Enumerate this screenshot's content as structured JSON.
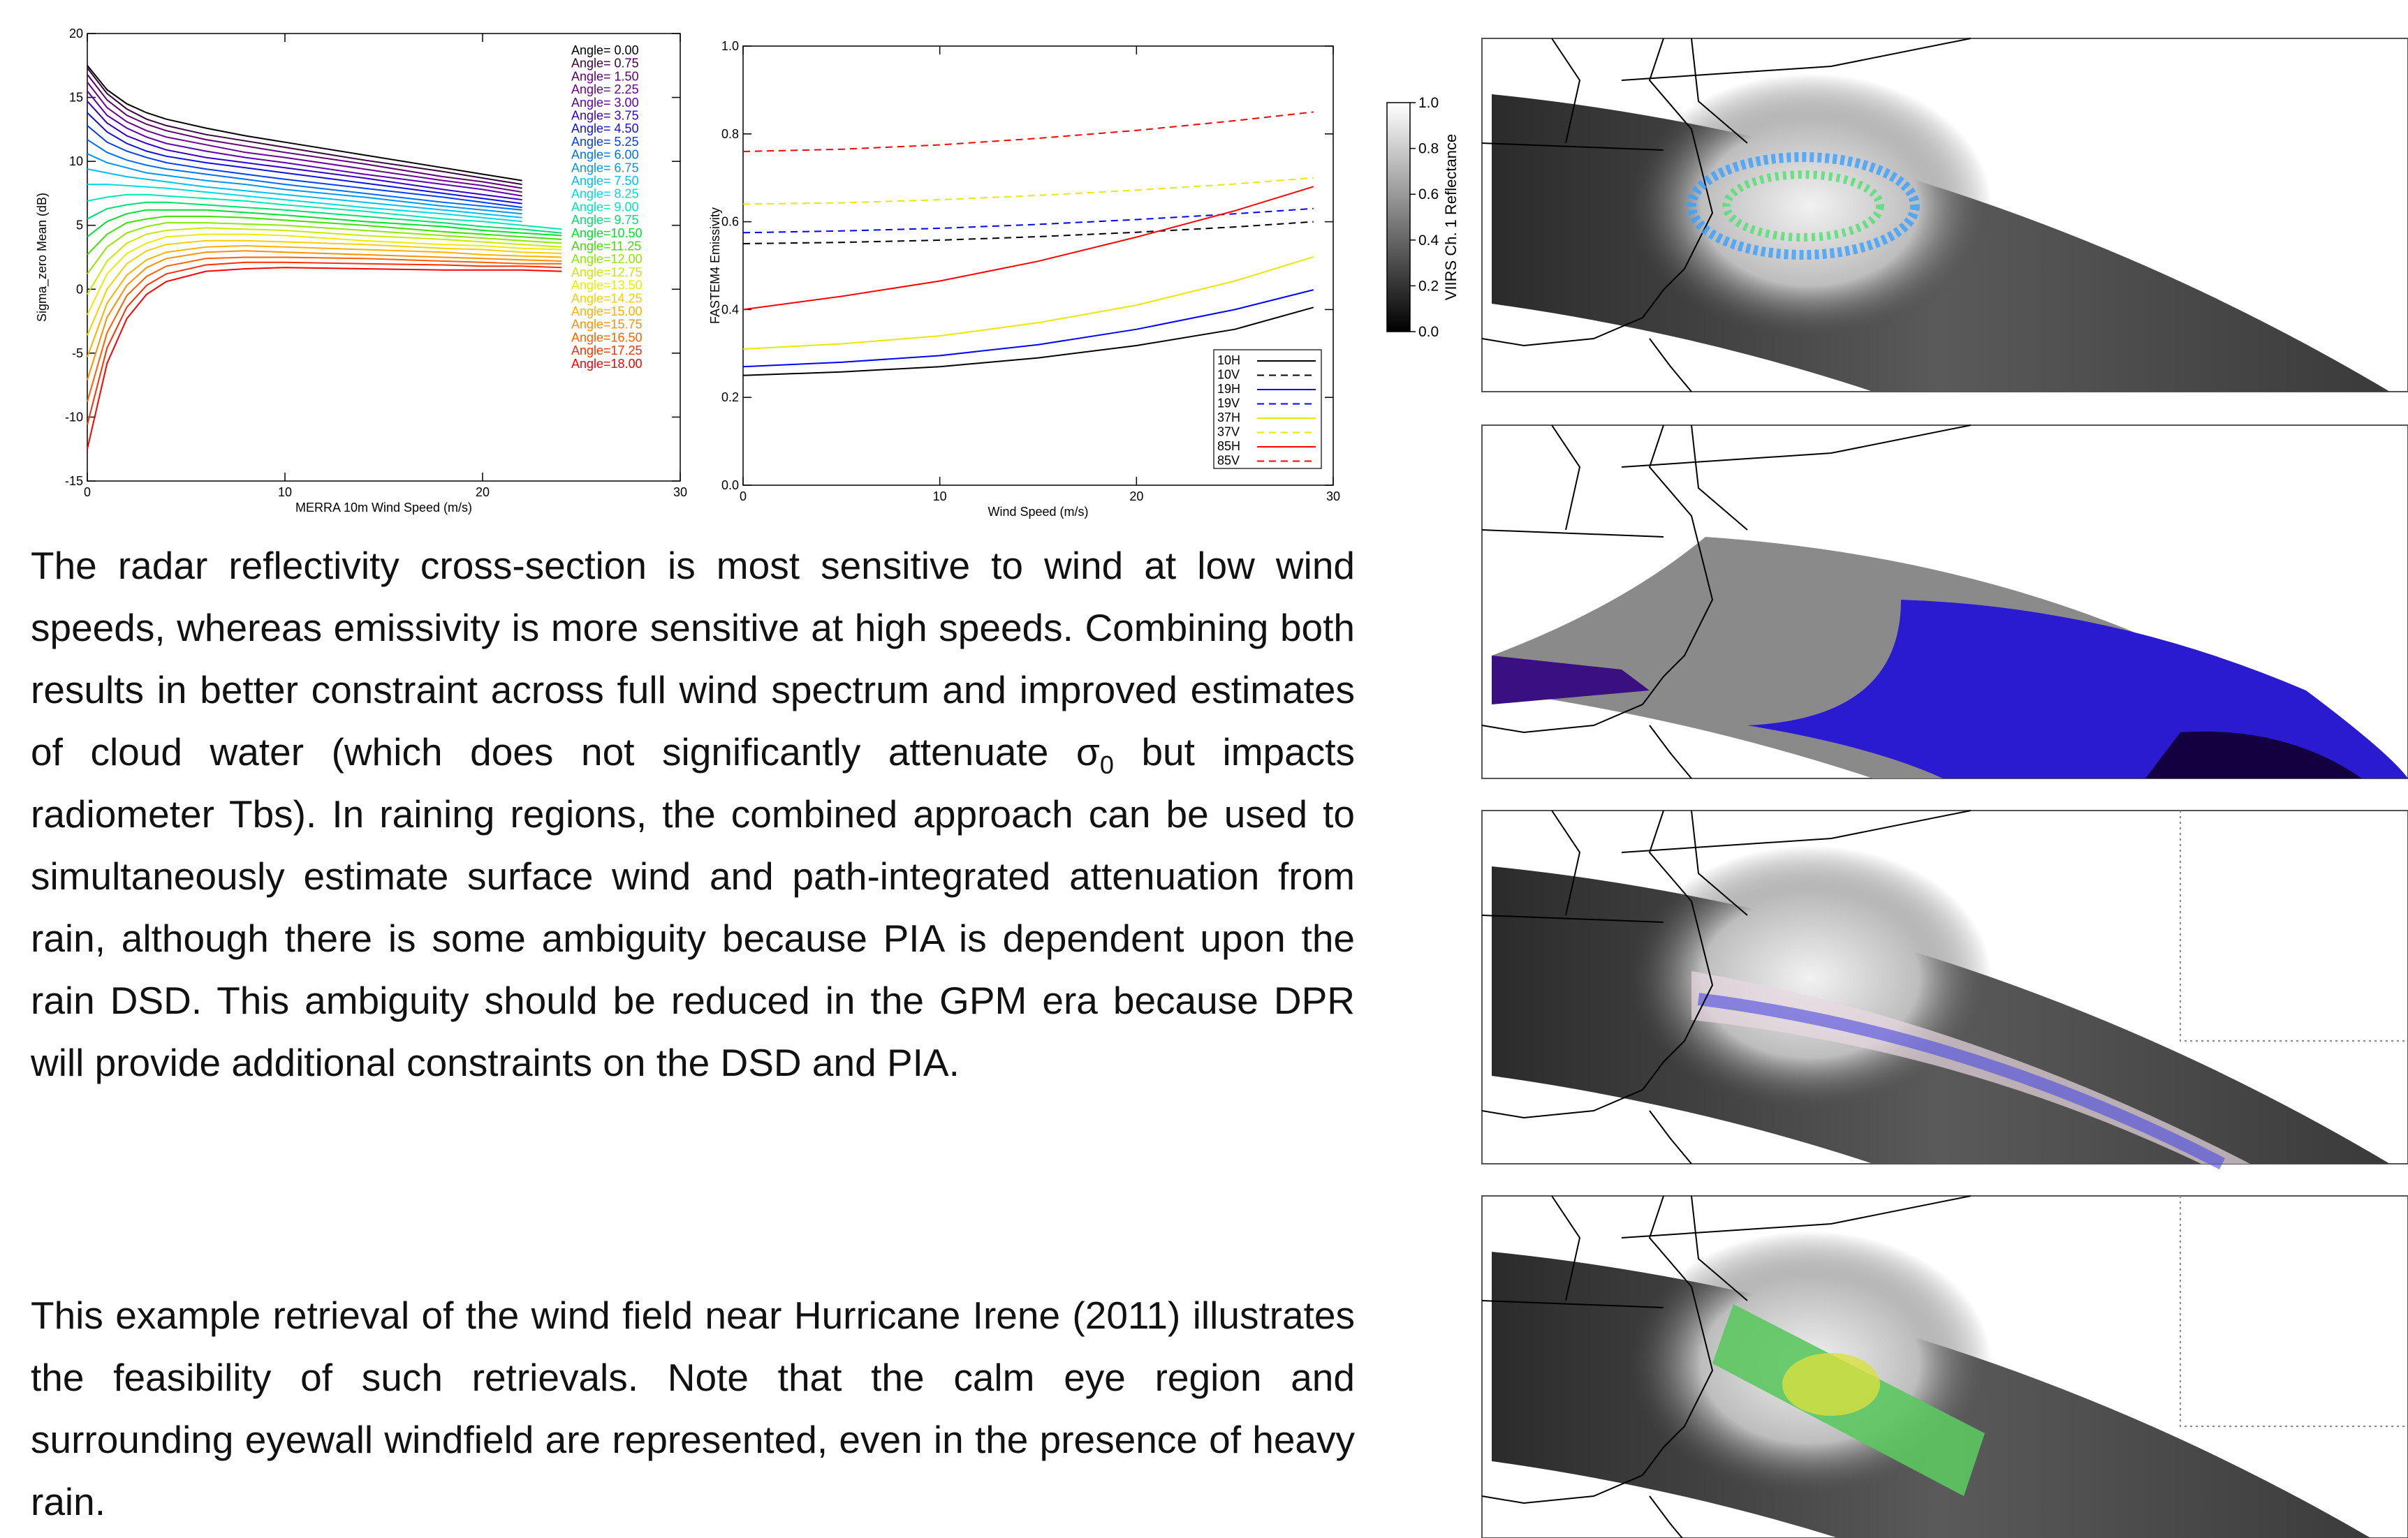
{
  "chart_data": [
    {
      "type": "line",
      "xlabel": "MERRA 10m Wind Speed (m/s)",
      "ylabel": "Sigma_zero Mean (dB)",
      "x": [
        0,
        1,
        2,
        3,
        4,
        6,
        8,
        10,
        14,
        18,
        20,
        22,
        24
      ],
      "xlim": [
        0,
        30
      ],
      "xticks": [
        0,
        10,
        20,
        30
      ],
      "ylim": [
        -15,
        20
      ],
      "yticks": [
        -15,
        -10,
        -5,
        0,
        5,
        10,
        15,
        20
      ],
      "grid": false,
      "legend": "upper right",
      "legend_frame": false,
      "series": [
        {
          "name": "Angle= 0.00",
          "color": "#000000",
          "values": [
            17.5,
            15.6,
            14.5,
            13.8,
            13.3,
            12.6,
            12.0,
            11.5,
            10.5,
            9.5,
            9.0,
            8.5,
            null
          ]
        },
        {
          "name": "Angle= 0.75",
          "color": "#3a0040",
          "values": [
            17.3,
            15.3,
            14.1,
            13.3,
            12.8,
            12.1,
            11.6,
            11.1,
            10.1,
            9.2,
            8.7,
            8.2,
            null
          ]
        },
        {
          "name": "Angle= 1.50",
          "color": "#5a006e",
          "values": [
            16.8,
            14.8,
            13.6,
            12.9,
            12.4,
            11.7,
            11.2,
            10.7,
            9.8,
            8.8,
            8.4,
            7.9,
            null
          ]
        },
        {
          "name": "Angle= 2.25",
          "color": "#6a0090",
          "values": [
            16.2,
            14.2,
            13.1,
            12.4,
            11.9,
            11.3,
            10.7,
            10.3,
            9.4,
            8.5,
            8.1,
            7.6,
            null
          ]
        },
        {
          "name": "Angle= 3.00",
          "color": "#5a00b0",
          "values": [
            15.5,
            13.6,
            12.6,
            11.9,
            11.4,
            10.8,
            10.3,
            9.9,
            9.0,
            8.2,
            7.8,
            7.3,
            null
          ]
        },
        {
          "name": "Angle= 3.75",
          "color": "#3300cc",
          "values": [
            14.7,
            13.0,
            12.0,
            11.4,
            10.9,
            10.3,
            9.9,
            9.5,
            8.7,
            7.8,
            7.4,
            7.0,
            null
          ]
        },
        {
          "name": "Angle= 4.50",
          "color": "#1010e0",
          "values": [
            13.8,
            12.3,
            11.4,
            10.8,
            10.4,
            9.9,
            9.5,
            9.1,
            8.3,
            7.5,
            7.1,
            6.7,
            null
          ]
        },
        {
          "name": "Angle= 5.25",
          "color": "#0040f0",
          "values": [
            12.8,
            11.5,
            10.8,
            10.3,
            9.9,
            9.4,
            9.0,
            8.6,
            7.9,
            7.2,
            6.8,
            6.4,
            null
          ]
        },
        {
          "name": "Angle= 6.00",
          "color": "#0070f0",
          "values": [
            11.7,
            10.7,
            10.1,
            9.7,
            9.4,
            9.0,
            8.6,
            8.2,
            7.5,
            6.8,
            6.5,
            6.2,
            null
          ]
        },
        {
          "name": "Angle= 6.75",
          "color": "#0098f0",
          "values": [
            10.6,
            9.9,
            9.5,
            9.1,
            8.9,
            8.5,
            8.2,
            7.8,
            7.2,
            6.5,
            6.2,
            5.9,
            null
          ]
        },
        {
          "name": "Angle= 7.50",
          "color": "#00c0f0",
          "values": [
            9.4,
            9.1,
            8.8,
            8.6,
            8.4,
            8.0,
            7.7,
            7.4,
            6.8,
            6.2,
            5.9,
            5.6,
            null
          ]
        },
        {
          "name": "Angle= 8.25",
          "color": "#00dce0",
          "values": [
            8.2,
            8.2,
            8.1,
            8.0,
            7.9,
            7.6,
            7.3,
            7.0,
            6.4,
            5.9,
            5.6,
            5.3,
            null
          ]
        },
        {
          "name": "Angle= 9.00",
          "color": "#00e8b0",
          "values": [
            6.9,
            7.2,
            7.4,
            7.4,
            7.3,
            7.1,
            6.9,
            6.6,
            6.1,
            5.5,
            5.3,
            5.0,
            4.7
          ]
        },
        {
          "name": "Angle= 9.75",
          "color": "#00e070",
          "values": [
            5.5,
            6.3,
            6.6,
            6.8,
            6.8,
            6.6,
            6.4,
            6.2,
            5.7,
            5.2,
            4.9,
            4.7,
            4.4
          ]
        },
        {
          "name": "Angle=10.50",
          "color": "#00e030",
          "values": [
            4.1,
            5.3,
            5.9,
            6.2,
            6.2,
            6.2,
            6.0,
            5.8,
            5.3,
            4.9,
            4.6,
            4.4,
            4.2
          ]
        },
        {
          "name": "Angle=11.25",
          "color": "#40e000",
          "values": [
            2.7,
            4.3,
            5.2,
            5.5,
            5.7,
            5.7,
            5.6,
            5.4,
            5.0,
            4.5,
            4.3,
            4.1,
            3.9
          ]
        },
        {
          "name": "Angle=12.00",
          "color": "#90e800",
          "values": [
            1.2,
            3.3,
            4.4,
            4.9,
            5.2,
            5.2,
            5.1,
            5.0,
            4.6,
            4.2,
            4.0,
            3.8,
            3.6
          ]
        },
        {
          "name": "Angle=12.75",
          "color": "#c8ec00",
          "values": [
            -0.4,
            2.2,
            3.6,
            4.3,
            4.6,
            4.8,
            4.7,
            4.6,
            4.2,
            3.9,
            3.7,
            3.5,
            3.3
          ]
        },
        {
          "name": "Angle=13.50",
          "color": "#ecec00",
          "values": [
            -2.0,
            1.2,
            2.8,
            3.6,
            4.1,
            4.3,
            4.3,
            4.2,
            3.8,
            3.5,
            3.4,
            3.2,
            3.1
          ]
        },
        {
          "name": "Angle=14.25",
          "color": "#f8d000",
          "values": [
            -3.6,
            0.0,
            2.0,
            3.0,
            3.5,
            3.8,
            3.8,
            3.7,
            3.5,
            3.2,
            3.1,
            2.9,
            2.8
          ]
        },
        {
          "name": "Angle=15.00",
          "color": "#ffb000",
          "values": [
            -5.3,
            -1.1,
            1.1,
            2.3,
            2.9,
            3.3,
            3.4,
            3.3,
            3.1,
            2.9,
            2.7,
            2.6,
            2.5
          ]
        },
        {
          "name": "Angle=15.75",
          "color": "#ff9000",
          "values": [
            -7.1,
            -2.2,
            0.3,
            1.7,
            2.4,
            2.9,
            3.0,
            2.9,
            2.7,
            2.5,
            2.4,
            2.3,
            2.2
          ]
        },
        {
          "name": "Angle=16.50",
          "color": "#ff6000",
          "values": [
            -8.8,
            -3.4,
            -0.5,
            1.0,
            1.8,
            2.4,
            2.5,
            2.5,
            2.4,
            2.2,
            2.1,
            2.0,
            2.0
          ]
        },
        {
          "name": "Angle=17.25",
          "color": "#ff3000",
          "values": [
            -10.6,
            -4.6,
            -1.4,
            0.3,
            1.2,
            1.9,
            2.1,
            2.1,
            2.0,
            1.9,
            1.8,
            1.8,
            1.7
          ]
        },
        {
          "name": "Angle=18.00",
          "color": "#ff0000",
          "values": [
            -12.5,
            -5.8,
            -2.3,
            -0.4,
            0.6,
            1.4,
            1.6,
            1.7,
            1.6,
            1.5,
            1.5,
            1.5,
            1.4
          ]
        }
      ]
    },
    {
      "type": "line",
      "xlabel": "Wind Speed (m/s)",
      "ylabel": "FASTEM4 Emissivity",
      "x": [
        0,
        5,
        10,
        15,
        20,
        25,
        29
      ],
      "xlim": [
        0,
        30
      ],
      "xticks": [
        0,
        10,
        20,
        30
      ],
      "ylim": [
        0,
        1
      ],
      "yticks": [
        {
          "value": 0,
          "label": "0.0"
        },
        {
          "value": 0.2,
          "label": "0.2"
        },
        {
          "value": 0.4,
          "label": "0.4"
        },
        {
          "value": 0.6,
          "label": "0.6"
        },
        {
          "value": 0.8,
          "label": "0.8"
        },
        {
          "value": 1,
          "label": "1.0"
        }
      ],
      "grid": false,
      "legend": "lower right",
      "legend_frame": true,
      "series": [
        {
          "name": "10H",
          "color": "#000000",
          "dash": false,
          "values": [
            0.25,
            0.258,
            0.27,
            0.29,
            0.318,
            0.355,
            0.405
          ]
        },
        {
          "name": "10V",
          "color": "#000000",
          "dash": true,
          "values": [
            0.55,
            0.553,
            0.558,
            0.566,
            0.576,
            0.588,
            0.6
          ]
        },
        {
          "name": "19H",
          "color": "#0000ff",
          "dash": false,
          "values": [
            0.27,
            0.28,
            0.295,
            0.32,
            0.355,
            0.4,
            0.445
          ]
        },
        {
          "name": "19V",
          "color": "#0000ff",
          "dash": true,
          "values": [
            0.575,
            0.579,
            0.585,
            0.594,
            0.605,
            0.618,
            0.63
          ]
        },
        {
          "name": "37H",
          "color": "#e8e800",
          "dash": false,
          "values": [
            0.31,
            0.322,
            0.34,
            0.37,
            0.41,
            0.465,
            0.52
          ]
        },
        {
          "name": "37V",
          "color": "#e8e800",
          "dash": true,
          "values": [
            0.64,
            0.643,
            0.65,
            0.66,
            0.672,
            0.686,
            0.7
          ]
        },
        {
          "name": "85H",
          "color": "#ff0000",
          "dash": false,
          "values": [
            0.4,
            0.43,
            0.465,
            0.51,
            0.565,
            0.625,
            0.68
          ]
        },
        {
          "name": "85V",
          "color": "#ff0000",
          "dash": true,
          "values": [
            0.76,
            0.765,
            0.775,
            0.79,
            0.808,
            0.83,
            0.85
          ]
        }
      ]
    }
  ],
  "paragraphs": [
    [
      "The radar reflectivity cross-section is most sensitive to wind at low wind speeds, whereas emissivity is more sensitive at high speeds. Combining both results in better constraint across full wind spectrum and improved estimates of cloud water (which does not significantly attenuate σ",
      "0",
      " but impacts radiometer Tbs). In raining regions, the combined approach can be used to simultaneously estimate surface wind and path-integrated attenuation from rain, although there is some ambiguity because PIA is dependent upon the rain DSD. This ambiguity should be reduced in the GPM era because DPR will provide additional constraints on the DSD and PIA."
    ],
    [
      "This example retrieval of the wind field near Hurricane Irene (2011) illustrates the feasibility of such retrievals. Note that the calm eye region and surrounding eyewall windfield are represented, even in the presence of heavy rain."
    ]
  ],
  "colorbar": {
    "label": "VIIRS Ch. 1 Reflectance",
    "lim": [
      0,
      1
    ],
    "ticks": [
      {
        "value": 0,
        "label": "0.0"
      },
      {
        "value": 0.2,
        "label": "0.2"
      },
      {
        "value": 0.4,
        "label": "0.4"
      },
      {
        "value": 0.6,
        "label": "0.6"
      },
      {
        "value": 0.8,
        "label": "0.8"
      },
      {
        "value": 1,
        "label": "1.0"
      }
    ]
  }
}
